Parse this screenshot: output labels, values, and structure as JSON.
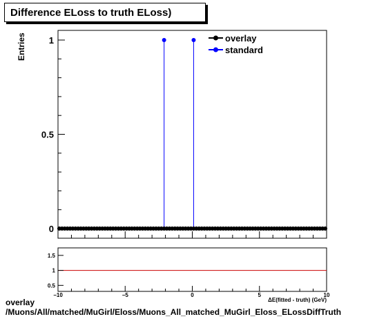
{
  "chart_data": [
    {
      "type": "scatter",
      "title": "Difference ELoss to truth ELoss)",
      "ylabel": "Entries",
      "xlim": [
        -10,
        10
      ],
      "ylim": [
        0,
        1.05
      ],
      "yticks": [
        0,
        0.5,
        1
      ],
      "ytick_labels": [
        "0",
        "0.5",
        "1"
      ],
      "legend_position": "top-right",
      "series": [
        {
          "name": "overlay",
          "color": "#000000",
          "marker": "circle",
          "x": [
            -9.9,
            -9.7,
            -9.5,
            -9.3,
            -9.1,
            -8.9,
            -8.7,
            -8.5,
            -8.3,
            -8.1,
            -7.9,
            -7.7,
            -7.5,
            -7.3,
            -7.1,
            -6.9,
            -6.7,
            -6.5,
            -6.3,
            -6.1,
            -5.9,
            -5.7,
            -5.5,
            -5.3,
            -5.1,
            -4.9,
            -4.7,
            -4.5,
            -4.3,
            -4.1,
            -3.9,
            -3.7,
            -3.5,
            -3.3,
            -3.1,
            -2.9,
            -2.7,
            -2.5,
            -2.3,
            -2.1,
            -1.9,
            -1.7,
            -1.5,
            -1.3,
            -1.1,
            -0.9,
            -0.7,
            -0.5,
            -0.3,
            -0.1,
            0.1,
            0.3,
            0.5,
            0.7,
            0.9,
            1.1,
            1.3,
            1.5,
            1.7,
            1.9,
            2.1,
            2.3,
            2.5,
            2.7,
            2.9,
            3.1,
            3.3,
            3.5,
            3.7,
            3.9,
            4.1,
            4.3,
            4.5,
            4.7,
            4.9,
            5.1,
            5.3,
            5.5,
            5.7,
            5.9,
            6.1,
            6.3,
            6.5,
            6.7,
            6.9,
            7.1,
            7.3,
            7.5,
            7.7,
            7.9,
            8.1,
            8.3,
            8.5,
            8.7,
            8.9,
            9.1,
            9.3,
            9.5,
            9.7,
            9.9
          ],
          "y": [
            0,
            0,
            0,
            0,
            0,
            0,
            0,
            0,
            0,
            0,
            0,
            0,
            0,
            0,
            0,
            0,
            0,
            0,
            0,
            0,
            0,
            0,
            0,
            0,
            0,
            0,
            0,
            0,
            0,
            0,
            0,
            0,
            0,
            0,
            0,
            0,
            0,
            0,
            0,
            0,
            0,
            0,
            0,
            0,
            0,
            0,
            0,
            0,
            0,
            0,
            0,
            0,
            0,
            0,
            0,
            0,
            0,
            0,
            0,
            0,
            0,
            0,
            0,
            0,
            0,
            0,
            0,
            0,
            0,
            0,
            0,
            0,
            0,
            0,
            0,
            0,
            0,
            0,
            0,
            0,
            0,
            0,
            0,
            0,
            0,
            0,
            0,
            0,
            0,
            0,
            0,
            0,
            0,
            0,
            0,
            0,
            0,
            0,
            0,
            0
          ]
        },
        {
          "name": "standard",
          "color": "#0000ff",
          "marker": "circle",
          "x": [
            -2.1,
            0.1
          ],
          "y": [
            1,
            1
          ]
        }
      ]
    },
    {
      "type": "line",
      "xlim": [
        -10,
        10
      ],
      "ylim": [
        0.3,
        1.75
      ],
      "yticks": [
        0.5,
        1,
        1.5
      ],
      "ytick_labels": [
        "0.5",
        "1",
        "1.5"
      ],
      "xticks": [
        -10,
        -5,
        0,
        5,
        10
      ],
      "xtick_labels": [
        "−10",
        "−5",
        "0",
        "5",
        "10"
      ],
      "xlabel": "ΔE(fitted - truth) (GeV)",
      "series": [
        {
          "color": "#cc0000",
          "x": [
            -10,
            10
          ],
          "y": [
            1,
            1
          ]
        }
      ]
    }
  ],
  "footer": {
    "line1": "overlay",
    "line2": "/Muons/All/matched/MuGirl/Eloss/Muons_All_matched_MuGirl_Eloss_ELossDiffTruth"
  }
}
